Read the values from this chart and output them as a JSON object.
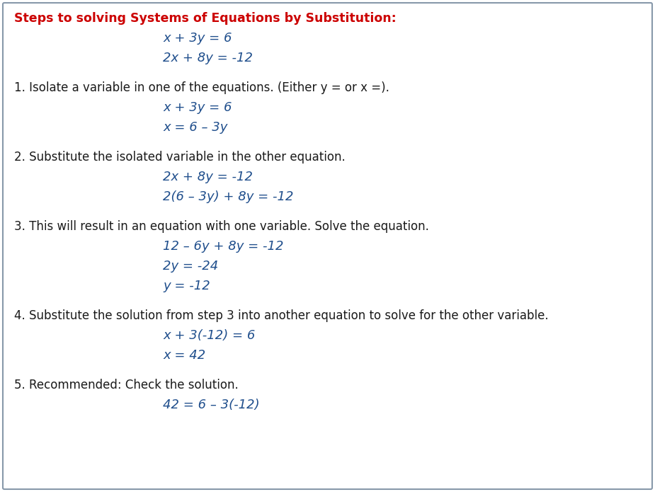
{
  "bg_color": "#ffffff",
  "border_color": "#8899aa",
  "title_color": "#cc0000",
  "body_color": "#1a1a1a",
  "eq_color": "#1f4e8c",
  "title_fontsize": 12.5,
  "body_fontsize": 12,
  "eq_fontsize": 13,
  "lines": [
    {
      "type": "title",
      "text": "Steps to solving Systems of Equations by Substitution:"
    },
    {
      "type": "eq",
      "text": "x + 3y = 6"
    },
    {
      "type": "eq",
      "text": "2x + 8y = -12"
    },
    {
      "type": "blank"
    },
    {
      "type": "body",
      "text": "1. Isolate a variable in one of the equations. (Either y = or x =)."
    },
    {
      "type": "eq",
      "text": "x + 3y = 6"
    },
    {
      "type": "eq",
      "text": "x = 6 – 3y"
    },
    {
      "type": "blank"
    },
    {
      "type": "body",
      "text": "2. Substitute the isolated variable in the other equation."
    },
    {
      "type": "eq",
      "text": "2x + 8y = -12"
    },
    {
      "type": "eq",
      "text": "2(6 – 3y) + 8y = -12"
    },
    {
      "type": "blank"
    },
    {
      "type": "body",
      "text": "3. This will result in an equation with one variable. Solve the equation."
    },
    {
      "type": "eq",
      "text": "12 – 6y + 8y = -12"
    },
    {
      "type": "eq",
      "text": "2y = -24"
    },
    {
      "type": "eq",
      "text": "y = -12"
    },
    {
      "type": "blank"
    },
    {
      "type": "body",
      "text": "4. Substitute the solution from step 3 into another equation to solve for the other variable."
    },
    {
      "type": "eq",
      "text": "x + 3(-12) = 6"
    },
    {
      "type": "eq",
      "text": "x = 42"
    },
    {
      "type": "blank"
    },
    {
      "type": "body",
      "text": "5. Recommended: Check the solution."
    },
    {
      "type": "eq",
      "text": "42 = 6 – 3(-12)"
    }
  ],
  "fig_width": 9.25,
  "fig_height": 6.95,
  "dpi": 100
}
